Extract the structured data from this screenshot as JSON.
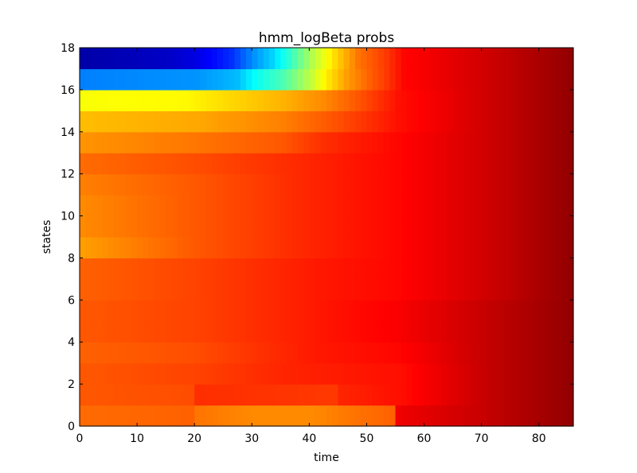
{
  "chart_data": {
    "type": "heatmap",
    "title": "hmm_logBeta probs",
    "xlabel": "time",
    "ylabel": "states",
    "xlim": [
      0,
      86
    ],
    "ylim": [
      0,
      18
    ],
    "n_columns": 86,
    "n_rows": 18,
    "colormap": "jet",
    "value_range": [
      0,
      1
    ],
    "grid": false,
    "xticks": [
      0,
      10,
      20,
      30,
      40,
      50,
      60,
      70,
      80
    ],
    "yticks": [
      0,
      2,
      4,
      6,
      8,
      10,
      12,
      14,
      16,
      18
    ],
    "row_profiles": [
      {
        "row": 0,
        "knots": [
          [
            0,
            0.77
          ],
          [
            19,
            0.78
          ],
          [
            20,
            0.76
          ],
          [
            30,
            0.74
          ],
          [
            40,
            0.74
          ],
          [
            54,
            0.78
          ],
          [
            55,
            0.89
          ],
          [
            70,
            0.93
          ],
          [
            85,
            0.98
          ]
        ]
      },
      {
        "row": 1,
        "knots": [
          [
            0,
            0.79
          ],
          [
            19,
            0.8
          ],
          [
            20,
            0.83
          ],
          [
            44,
            0.82
          ],
          [
            45,
            0.84
          ],
          [
            55,
            0.86
          ],
          [
            70,
            0.93
          ],
          [
            85,
            0.98
          ]
        ]
      },
      {
        "row": 2,
        "knots": [
          [
            0,
            0.79
          ],
          [
            20,
            0.81
          ],
          [
            35,
            0.84
          ],
          [
            55,
            0.86
          ],
          [
            70,
            0.93
          ],
          [
            85,
            0.98
          ]
        ]
      },
      {
        "row": 3,
        "knots": [
          [
            0,
            0.78
          ],
          [
            20,
            0.8
          ],
          [
            40,
            0.85
          ],
          [
            55,
            0.87
          ],
          [
            70,
            0.93
          ],
          [
            85,
            0.98
          ]
        ]
      },
      {
        "row": 4,
        "knots": [
          [
            0,
            0.79
          ],
          [
            20,
            0.81
          ],
          [
            40,
            0.85
          ],
          [
            55,
            0.88
          ],
          [
            70,
            0.93
          ],
          [
            85,
            0.98
          ]
        ]
      },
      {
        "row": 5,
        "knots": [
          [
            0,
            0.79
          ],
          [
            20,
            0.81
          ],
          [
            40,
            0.85
          ],
          [
            55,
            0.88
          ],
          [
            70,
            0.93
          ],
          [
            85,
            0.98
          ]
        ]
      },
      {
        "row": 6,
        "knots": [
          [
            0,
            0.78
          ],
          [
            20,
            0.81
          ],
          [
            40,
            0.85
          ],
          [
            55,
            0.87
          ],
          [
            70,
            0.92
          ],
          [
            85,
            0.98
          ]
        ]
      },
      {
        "row": 7,
        "knots": [
          [
            0,
            0.78
          ],
          [
            20,
            0.81
          ],
          [
            40,
            0.85
          ],
          [
            55,
            0.87
          ],
          [
            70,
            0.92
          ],
          [
            85,
            0.98
          ]
        ]
      },
      {
        "row": 8,
        "knots": [
          [
            0,
            0.72
          ],
          [
            20,
            0.79
          ],
          [
            40,
            0.84
          ],
          [
            55,
            0.87
          ],
          [
            70,
            0.92
          ],
          [
            85,
            0.98
          ]
        ]
      },
      {
        "row": 9,
        "knots": [
          [
            0,
            0.74
          ],
          [
            20,
            0.79
          ],
          [
            40,
            0.84
          ],
          [
            55,
            0.87
          ],
          [
            70,
            0.92
          ],
          [
            85,
            0.98
          ]
        ]
      },
      {
        "row": 10,
        "knots": [
          [
            0,
            0.74
          ],
          [
            20,
            0.79
          ],
          [
            40,
            0.84
          ],
          [
            55,
            0.87
          ],
          [
            70,
            0.92
          ],
          [
            85,
            0.98
          ]
        ]
      },
      {
        "row": 11,
        "knots": [
          [
            0,
            0.75
          ],
          [
            20,
            0.79
          ],
          [
            40,
            0.84
          ],
          [
            55,
            0.87
          ],
          [
            70,
            0.92
          ],
          [
            85,
            0.98
          ]
        ]
      },
      {
        "row": 12,
        "knots": [
          [
            0,
            0.77
          ],
          [
            20,
            0.8
          ],
          [
            40,
            0.84
          ],
          [
            55,
            0.87
          ],
          [
            70,
            0.92
          ],
          [
            85,
            0.98
          ]
        ]
      },
      {
        "row": 13,
        "knots": [
          [
            0,
            0.73
          ],
          [
            20,
            0.76
          ],
          [
            35,
            0.79
          ],
          [
            42,
            0.83
          ],
          [
            55,
            0.87
          ],
          [
            70,
            0.92
          ],
          [
            85,
            0.98
          ]
        ]
      },
      {
        "row": 14,
        "knots": [
          [
            0,
            0.69
          ],
          [
            20,
            0.71
          ],
          [
            35,
            0.75
          ],
          [
            45,
            0.8
          ],
          [
            55,
            0.86
          ],
          [
            70,
            0.92
          ],
          [
            85,
            0.98
          ]
        ]
      },
      {
        "row": 15,
        "knots": [
          [
            0,
            0.62
          ],
          [
            18,
            0.63
          ],
          [
            25,
            0.66
          ],
          [
            35,
            0.7
          ],
          [
            42,
            0.74
          ],
          [
            49,
            0.8
          ],
          [
            55,
            0.86
          ],
          [
            70,
            0.92
          ],
          [
            85,
            0.98
          ]
        ]
      },
      {
        "row": 16,
        "knots": [
          [
            0,
            0.25
          ],
          [
            20,
            0.27
          ],
          [
            27,
            0.31
          ],
          [
            30,
            0.38
          ],
          [
            35,
            0.45
          ],
          [
            40,
            0.57
          ],
          [
            42,
            0.63
          ],
          [
            46,
            0.72
          ],
          [
            50,
            0.78
          ],
          [
            53,
            0.82
          ],
          [
            56,
            0.87
          ],
          [
            70,
            0.92
          ],
          [
            85,
            0.98
          ]
        ]
      },
      {
        "row": 17,
        "knots": [
          [
            0,
            0.04
          ],
          [
            15,
            0.07
          ],
          [
            20,
            0.1
          ],
          [
            26,
            0.17
          ],
          [
            30,
            0.27
          ],
          [
            33,
            0.33
          ],
          [
            36,
            0.42
          ],
          [
            40,
            0.55
          ],
          [
            44,
            0.66
          ],
          [
            48,
            0.76
          ],
          [
            53,
            0.82
          ],
          [
            56,
            0.87
          ],
          [
            70,
            0.92
          ],
          [
            85,
            0.98
          ]
        ]
      }
    ]
  }
}
